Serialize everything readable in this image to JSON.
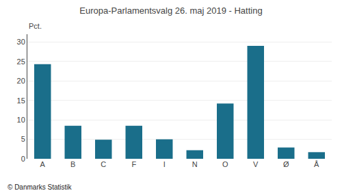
{
  "chart_data": {
    "type": "bar",
    "title": "Europa-Parlamentsvalg 26. maj 2019 - Hatting",
    "categories": [
      "A",
      "B",
      "C",
      "F",
      "I",
      "N",
      "O",
      "V",
      "Ø",
      "Å"
    ],
    "values": [
      24.3,
      8.5,
      4.9,
      8.5,
      5.0,
      2.2,
      14.2,
      29.0,
      2.9,
      1.7
    ],
    "color": "#1a6e8a",
    "ylabel": "Pct.",
    "ylim": [
      0,
      32
    ],
    "yticks": [
      0,
      5,
      10,
      15,
      20,
      25,
      30
    ],
    "grid": true,
    "annotations": [
      "© Danmarks Statistik"
    ]
  }
}
